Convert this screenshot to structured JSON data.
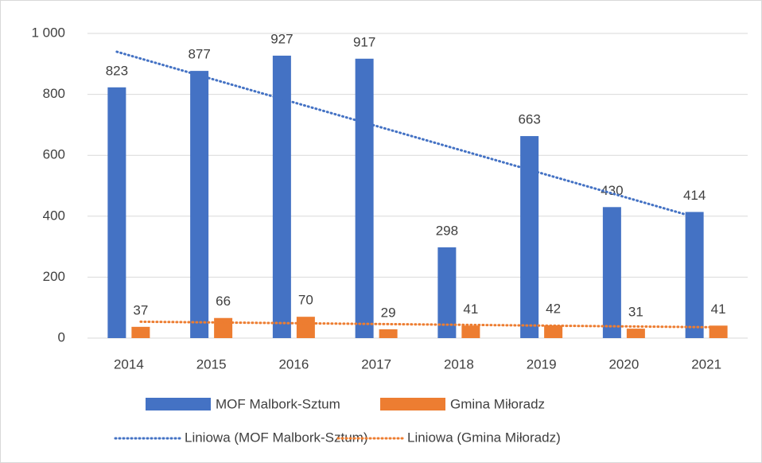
{
  "chart_data": {
    "type": "bar",
    "categories": [
      "2014",
      "2015",
      "2016",
      "2017",
      "2018",
      "2019",
      "2020",
      "2021"
    ],
    "series": [
      {
        "name": "MOF Malbork-Sztum",
        "color": "#4472c4",
        "values": [
          823,
          877,
          927,
          917,
          298,
          663,
          430,
          414
        ],
        "trendline": "Liniowa (MOF Malbork-Sztum)"
      },
      {
        "name": "Gmina Miłoradz",
        "color": "#ed7d31",
        "values": [
          37,
          66,
          70,
          29,
          41,
          42,
          31,
          41
        ],
        "trendline": "Liniowa (Gmina Miłoradz)"
      }
    ],
    "ylim": [
      0,
      1000
    ],
    "yticks": [
      0,
      200,
      400,
      600,
      800,
      {
        "value": 1000,
        "label": "1 000"
      }
    ],
    "grid": true,
    "legend": "bottom"
  }
}
